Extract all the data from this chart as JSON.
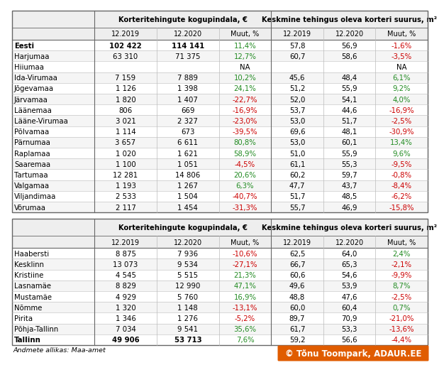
{
  "col_headers_top": [
    "Korteritehingute kogupindala, €",
    "Keskmine tehingus oleva korteri suurus, m²"
  ],
  "col_headers_sub": [
    "12.2019",
    "12.2020",
    "Muut, %"
  ],
  "table1_rows": [
    [
      "Eesti",
      "102 422",
      "114 141",
      "11,4%",
      "57,8",
      "56,9",
      "-1,6%"
    ],
    [
      "Harjumaa",
      "63 310",
      "71 375",
      "12,7%",
      "60,7",
      "58,6",
      "-3,5%"
    ],
    [
      "Hiiumaa",
      "",
      "",
      "NA",
      "",
      "",
      "NA"
    ],
    [
      "Ida-Virumaa",
      "7 159",
      "7 889",
      "10,2%",
      "45,6",
      "48,4",
      "6,1%"
    ],
    [
      "Jõgevamaa",
      "1 126",
      "1 398",
      "24,1%",
      "51,2",
      "55,9",
      "9,2%"
    ],
    [
      "Järvamaa",
      "1 820",
      "1 407",
      "-22,7%",
      "52,0",
      "54,1",
      "4,0%"
    ],
    [
      "Läänemaa",
      "806",
      "669",
      "-16,9%",
      "53,7",
      "44,6",
      "-16,9%"
    ],
    [
      "Lääne-Virumaa",
      "3 021",
      "2 327",
      "-23,0%",
      "53,0",
      "51,7",
      "-2,5%"
    ],
    [
      "Põlvamaa",
      "1 114",
      "673",
      "-39,5%",
      "69,6",
      "48,1",
      "-30,9%"
    ],
    [
      "Pärnumaa",
      "3 657",
      "6 611",
      "80,8%",
      "53,0",
      "60,1",
      "13,4%"
    ],
    [
      "Raplamaa",
      "1 020",
      "1 621",
      "58,9%",
      "51,0",
      "55,9",
      "9,6%"
    ],
    [
      "Saaremaa",
      "1 100",
      "1 051",
      "-4,5%",
      "61,1",
      "55,3",
      "-9,5%"
    ],
    [
      "Tartumaa",
      "12 281",
      "14 806",
      "20,6%",
      "60,2",
      "59,7",
      "-0,8%"
    ],
    [
      "Valgamaa",
      "1 193",
      "1 267",
      "6,3%",
      "47,7",
      "43,7",
      "-8,4%"
    ],
    [
      "Viljandimaa",
      "2 533",
      "1 504",
      "-40,7%",
      "51,7",
      "48,5",
      "-6,2%"
    ],
    [
      "Võrumaa",
      "2 117",
      "1 454",
      "-31,3%",
      "55,7",
      "46,9",
      "-15,8%"
    ]
  ],
  "table1_bold": [
    0
  ],
  "table2_rows": [
    [
      "Haabersti",
      "8 875",
      "7 936",
      "-10,6%",
      "62,5",
      "64,0",
      "2,4%"
    ],
    [
      "Kesklinn",
      "13 073",
      "9 534",
      "-27,1%",
      "66,7",
      "65,3",
      "-2,1%"
    ],
    [
      "Kristiine",
      "4 545",
      "5 515",
      "21,3%",
      "60,6",
      "54,6",
      "-9,9%"
    ],
    [
      "Lasnamäe",
      "8 829",
      "12 990",
      "47,1%",
      "49,6",
      "53,9",
      "8,7%"
    ],
    [
      "Mustamäe",
      "4 929",
      "5 760",
      "16,9%",
      "48,8",
      "47,6",
      "-2,5%"
    ],
    [
      "Nõmme",
      "1 320",
      "1 148",
      "-13,1%",
      "60,0",
      "60,4",
      "0,7%"
    ],
    [
      "Pirita",
      "1 346",
      "1 276",
      "-5,2%",
      "89,7",
      "70,9",
      "-21,0%"
    ],
    [
      "Põhja-Tallinn",
      "7 034",
      "9 541",
      "35,6%",
      "61,7",
      "53,3",
      "-13,6%"
    ],
    [
      "Tallinn",
      "49 906",
      "53 713",
      "7,6%",
      "59,2",
      "56,6",
      "-4,4%"
    ]
  ],
  "table2_bold": [
    8
  ],
  "footer": "Andmete allikas: Maa-amet",
  "watermark": "© Tõnu Toompark, ADAUR.EE",
  "bg_color": "#ffffff",
  "header_bg": "#eeeeee",
  "row_bg_even": "#ffffff",
  "row_bg_odd": "#f5f5f5",
  "border_dark": "#666666",
  "border_light": "#bbbbbb",
  "green_color": "#228b22",
  "red_color": "#cc0000",
  "black_color": "#000000",
  "wm_bg": "#e05c00",
  "wm_border": "#e05c00"
}
